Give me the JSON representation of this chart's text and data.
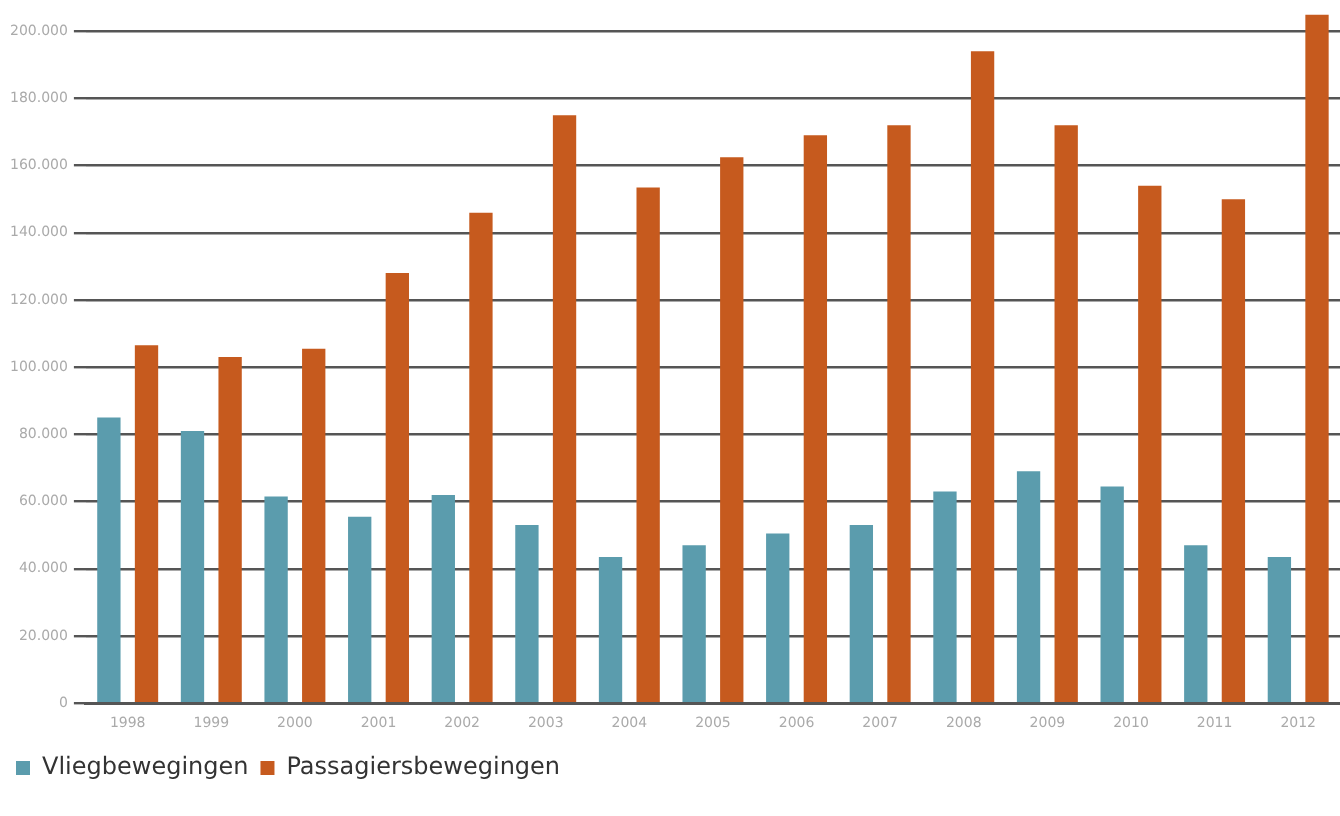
{
  "chart_data": {
    "type": "bar",
    "categories": [
      "1998",
      "1999",
      "2000",
      "2001",
      "2002",
      "2003",
      "2004",
      "2005",
      "2006",
      "2007",
      "2008",
      "2009",
      "2010",
      "2011",
      "2012"
    ],
    "series": [
      {
        "name": "Vliegbewegingen",
        "color": "#5b9cad",
        "values": [
          85000,
          81000,
          61500,
          55500,
          62000,
          53000,
          43500,
          47000,
          50500,
          53000,
          63000,
          69000,
          64500,
          47000,
          43500
        ]
      },
      {
        "name": "Passagiersbewegingen",
        "color": "#c65a1e",
        "values": [
          106500,
          103000,
          105500,
          128000,
          146000,
          175000,
          153500,
          162500,
          169000,
          172000,
          194000,
          172000,
          154000,
          150000,
          205000
        ]
      }
    ],
    "ylim": [
      0,
      205000
    ],
    "yticks": [
      {
        "value": 0,
        "label": "0"
      },
      {
        "value": 20000,
        "label": "20.000"
      },
      {
        "value": 40000,
        "label": "40.000"
      },
      {
        "value": 60000,
        "label": "60.000"
      },
      {
        "value": 80000,
        "label": "80.000"
      },
      {
        "value": 100000,
        "label": "100.000"
      },
      {
        "value": 120000,
        "label": "120.000"
      },
      {
        "value": 140000,
        "label": "140.000"
      },
      {
        "value": 160000,
        "label": "160.000"
      },
      {
        "value": 180000,
        "label": "180.000"
      },
      {
        "value": 200000,
        "label": "200.000"
      }
    ],
    "grid": "y",
    "legend": "bottom left"
  }
}
